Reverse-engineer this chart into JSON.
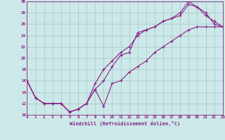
{
  "xlabel": "Windchill (Refroidissement éolien,°C)",
  "bg_color": "#cce8e8",
  "grid_color": "#aacccc",
  "line_color": "#882288",
  "xlim": [
    0,
    23
  ],
  "ylim": [
    10,
    30
  ],
  "xticks": [
    0,
    1,
    2,
    3,
    4,
    5,
    6,
    7,
    8,
    9,
    10,
    11,
    12,
    13,
    14,
    15,
    16,
    17,
    18,
    19,
    20,
    21,
    22,
    23
  ],
  "yticks": [
    10,
    12,
    14,
    16,
    18,
    20,
    22,
    24,
    26,
    28,
    30
  ],
  "curve1_x": [
    0,
    1,
    2,
    3,
    4,
    5,
    6,
    7,
    8,
    9,
    10,
    11,
    12,
    13,
    14,
    15,
    16,
    17,
    18,
    19,
    20,
    21,
    22,
    23
  ],
  "curve1_y": [
    16,
    13,
    12,
    12,
    12,
    10.5,
    11,
    12,
    14.5,
    11.5,
    15.5,
    16,
    17.5,
    18.5,
    19.5,
    21,
    22,
    23,
    24,
    25,
    25.5,
    25.5,
    25.5,
    25.5
  ],
  "curve2_x": [
    0,
    1,
    2,
    3,
    4,
    5,
    6,
    7,
    8,
    9,
    10,
    11,
    12,
    13,
    14,
    15,
    16,
    17,
    18,
    19,
    20,
    21,
    22,
    23
  ],
  "curve2_y": [
    16,
    13,
    12,
    12,
    12,
    10.5,
    11,
    12,
    14.5,
    16,
    18.5,
    20.5,
    21,
    24.5,
    25,
    25.5,
    26.5,
    27,
    27.5,
    29.5,
    29,
    28,
    26,
    25.5
  ],
  "curve3_x": [
    0,
    1,
    2,
    3,
    4,
    5,
    6,
    7,
    8,
    9,
    10,
    11,
    12,
    13,
    14,
    15,
    16,
    17,
    18,
    19,
    20,
    21,
    22,
    23
  ],
  "curve3_y": [
    16,
    13,
    12,
    12,
    12,
    10.5,
    11,
    12,
    15.5,
    18,
    19.5,
    21,
    22,
    24,
    25,
    25.5,
    26.5,
    27,
    28,
    30,
    29,
    27.5,
    26.5,
    25.5
  ]
}
